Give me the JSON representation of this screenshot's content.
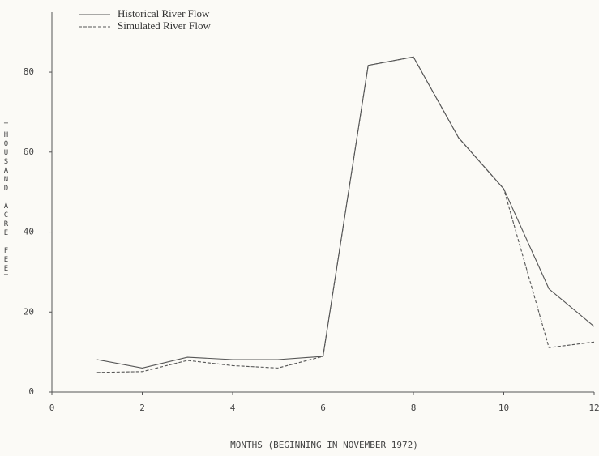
{
  "chart_data": {
    "type": "line",
    "x_label": "MONTHS  (BEGINNING IN NOVEMBER 1972)",
    "y_label": "THOUSAND ACRE FEET",
    "x": [
      1,
      2,
      3,
      4,
      5,
      6,
      7,
      8,
      9,
      10,
      11,
      12
    ],
    "series": [
      {
        "name": "Historical River Flow",
        "color": "#555555",
        "dash": false,
        "values": [
          8.1,
          6.0,
          8.7,
          8.1,
          8.1,
          8.9,
          81.7,
          83.8,
          63.6,
          50.8,
          25.8,
          16.4
        ]
      },
      {
        "name": "Simulated River Flow",
        "color": "#555555",
        "dash": true,
        "values": [
          4.9,
          5.1,
          7.9,
          6.6,
          6.0,
          8.9,
          81.7,
          83.8,
          63.6,
          50.8,
          11.1,
          12.5
        ]
      }
    ],
    "xlim": [
      0,
      12
    ],
    "xticks": [
      0,
      2,
      4,
      6,
      8,
      10,
      12
    ],
    "ylim": [
      0,
      95
    ],
    "yticks": [
      0,
      20,
      40,
      60,
      80
    ],
    "grid": false,
    "legend": "top-left"
  }
}
